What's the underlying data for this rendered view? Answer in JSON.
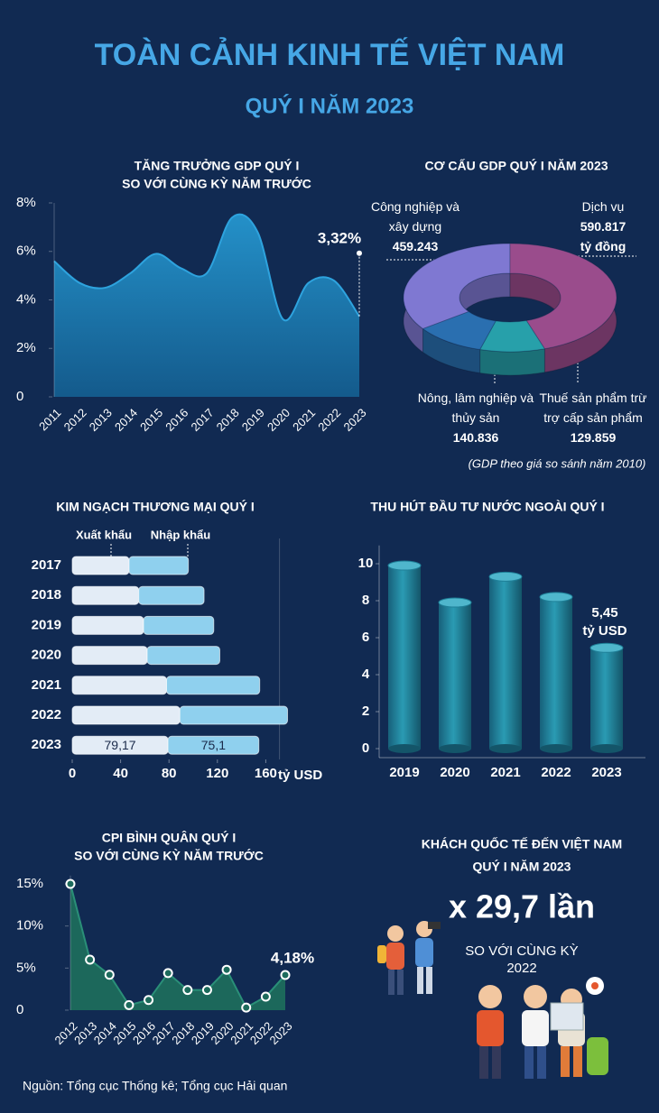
{
  "title": "TOÀN CẢNH KINH TẾ VIỆT NAM",
  "subtitle": "QUÝ I NĂM 2023",
  "chart_data": [
    {
      "type": "area",
      "smooth": true,
      "title": "TĂNG TRƯỞNG GDP QUÝ I",
      "subtitle": "SO VỚI CÙNG KỲ NĂM TRƯỚC",
      "categories": [
        "2011",
        "2012",
        "2013",
        "2014",
        "2015",
        "2016",
        "2017",
        "2018",
        "2019",
        "2020",
        "2021",
        "2022",
        "2023"
      ],
      "values": [
        5.6,
        4.7,
        4.5,
        5.1,
        5.9,
        5.3,
        5.1,
        7.4,
        6.8,
        3.2,
        4.7,
        4.8,
        3.32
      ],
      "value_labels": [
        null,
        null,
        null,
        null,
        null,
        null,
        null,
        null,
        null,
        null,
        null,
        null,
        "3,32%"
      ],
      "color": "#1f86bd",
      "ylim": [
        0,
        8
      ],
      "yticks": [
        0,
        {
          "value": 2,
          "label": "2%"
        },
        {
          "value": 4,
          "label": "4%"
        },
        {
          "value": 6,
          "label": "6%"
        },
        {
          "value": 8,
          "label": "8%"
        }
      ]
    },
    {
      "type": "pie",
      "donut": true,
      "title": "CƠ CẤU GDP QUÝ I NĂM 2023",
      "categories": [
        "Công nghiệp và xây dựng",
        "Dịch vụ",
        "Thuế sản phẩm trừ trợ cấp sản phẩm",
        "Nông, lâm nghiệp và thủy sản"
      ],
      "values": [
        459243,
        590817,
        129859,
        140836
      ],
      "value_labels": [
        "459.243",
        "590.817",
        "129.859",
        "140.836"
      ],
      "colors": [
        "#7f78d2",
        "#9a4c8c",
        "#27a0aa",
        "#2a6fb0"
      ],
      "unit": "tỷ đồng",
      "note": "(GDP theo giá so sánh năm 2010)"
    },
    {
      "type": "bar",
      "orientation": "horizontal",
      "stacked": true,
      "title": "KIM NGẠCH THƯƠNG MẠI QUÝ I",
      "categories": [
        "2017",
        "2018",
        "2019",
        "2020",
        "2021",
        "2022",
        "2023"
      ],
      "series": [
        {
          "name": "Xuất khẩu",
          "color": "#e3ecf6",
          "values": [
            47,
            55,
            59,
            62,
            78,
            89,
            79.17
          ],
          "value_labels": [
            null,
            null,
            null,
            null,
            null,
            null,
            "79,17"
          ]
        },
        {
          "name": "Nhập khẩu",
          "color": "#8fd0ee",
          "values": [
            49,
            54,
            58,
            60,
            77,
            89,
            75.1
          ],
          "value_labels": [
            null,
            null,
            null,
            null,
            null,
            null,
            "75,1"
          ]
        }
      ],
      "xlim": [
        0,
        190
      ],
      "xticks": [
        0,
        40,
        80,
        120,
        160
      ],
      "x_label": "tỷ USD"
    },
    {
      "type": "bar",
      "title": "THU HÚT ĐẦU TƯ NƯỚC NGOÀI QUÝ I",
      "categories": [
        "2019",
        "2020",
        "2021",
        "2022",
        "2023"
      ],
      "values": [
        9.9,
        7.9,
        9.3,
        8.2,
        5.45
      ],
      "value_labels": [
        null,
        null,
        null,
        null,
        "5,45"
      ],
      "unit": "tỷ USD",
      "color": "#1e7f97",
      "ylim": [
        0,
        10.5
      ],
      "yticks": [
        0,
        2,
        4,
        6,
        8,
        10
      ]
    },
    {
      "type": "area",
      "markers": true,
      "title": "CPI BÌNH QUÂN QUÝ I",
      "subtitle": "SO VỚI CÙNG KỲ NĂM TRƯỚC",
      "categories": [
        "2012",
        "2013",
        "2014",
        "2015",
        "2016",
        "2017",
        "2018",
        "2019",
        "2020",
        "2021",
        "2022",
        "2023"
      ],
      "values": [
        15,
        6,
        4.2,
        0.6,
        1.2,
        4.4,
        2.4,
        2.4,
        4.8,
        0.3,
        1.6,
        4.18
      ],
      "value_labels": [
        null,
        null,
        null,
        null,
        null,
        null,
        null,
        null,
        null,
        null,
        null,
        "4,18%"
      ],
      "color": "#1d6b5c",
      "ylim": [
        -1,
        16
      ],
      "yticks": [
        0,
        {
          "value": 5,
          "label": "5%"
        },
        {
          "value": 10,
          "label": "10%"
        },
        {
          "value": 15,
          "label": "15%"
        }
      ]
    }
  ],
  "tourism": {
    "title": "KHÁCH QUỐC TẾ ĐẾN VIỆT NAM",
    "subtitle": "QUÝ I NĂM 2023",
    "highlight": "x 29,7 lần",
    "comparison": "SO VỚI CÙNG KỲ",
    "year": "2022"
  },
  "source": "Nguồn: Tổng cục Thống kê; Tổng cục Hải quan"
}
